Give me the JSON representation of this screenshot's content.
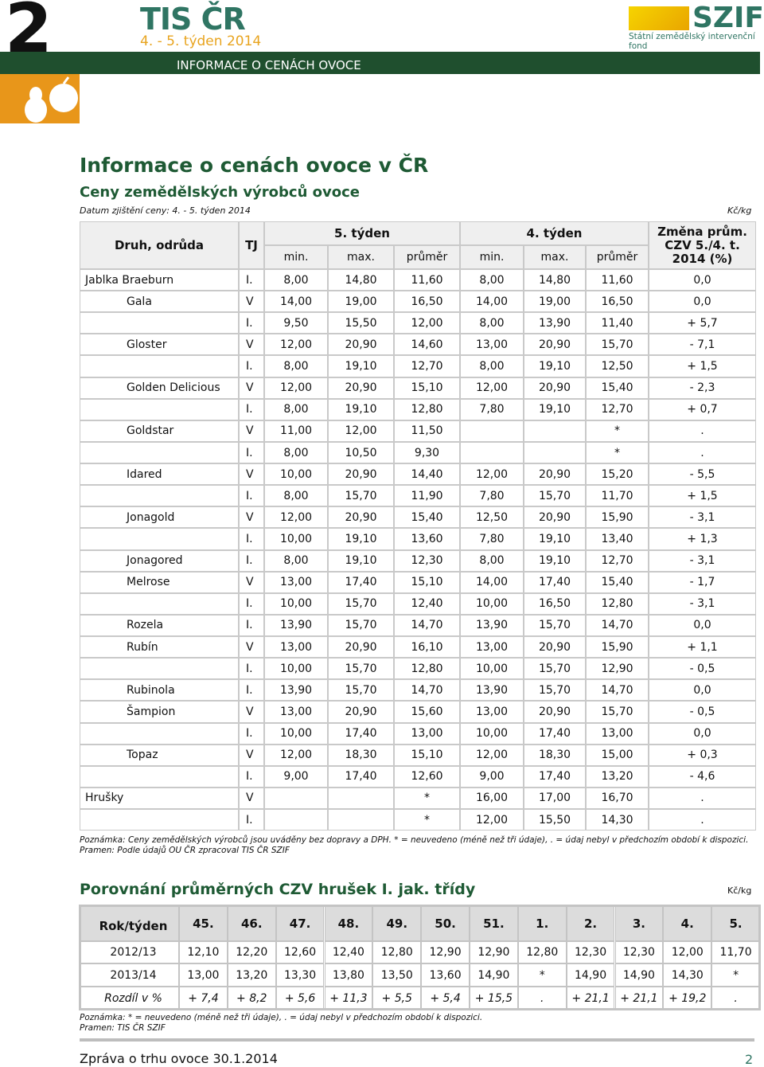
{
  "header": {
    "number": "2",
    "brand": "TIS ČR",
    "week": "4. - 5. týden 2014",
    "banner": "INFORMACE O CENÁCH OVOCE",
    "logo": "SZIF",
    "logo_sub": "Státní zemědělský intervenční fond"
  },
  "title": "Informace o cenách ovoce v ČR",
  "subtitle": "Ceny zemědělských výrobců ovoce",
  "date": "Datum zjištění ceny: 4. - 5. týden 2014",
  "unit": "Kč/kg",
  "table": {
    "columns": {
      "name": "Druh, odrůda",
      "tj": "TJ",
      "week5": "5. týden",
      "week4": "4. týden",
      "change": "Změna prům. CZV 5./4. t. 2014 (%)"
    },
    "subcolumns": [
      "min.",
      "max.",
      "průměr",
      "min.",
      "max.",
      "průměr"
    ],
    "rows": [
      [
        "Jablka Braeburn",
        "I.",
        "8,00",
        "14,80",
        "11,60",
        "8,00",
        "14,80",
        "11,60",
        "0,0"
      ],
      [
        "Gala",
        "V",
        "14,00",
        "19,00",
        "16,50",
        "14,00",
        "19,00",
        "16,50",
        "0,0"
      ],
      [
        null,
        "I.",
        "9,50",
        "15,50",
        "12,00",
        "8,00",
        "13,90",
        "11,40",
        "+ 5,7"
      ],
      [
        "Gloster",
        "V",
        "12,00",
        "20,90",
        "14,60",
        "13,00",
        "20,90",
        "15,70",
        "- 7,1"
      ],
      [
        null,
        "I.",
        "8,00",
        "19,10",
        "12,70",
        "8,00",
        "19,10",
        "12,50",
        "+ 1,5"
      ],
      [
        "Golden Delicious",
        "V",
        "12,00",
        "20,90",
        "15,10",
        "12,00",
        "20,90",
        "15,40",
        "- 2,3"
      ],
      [
        null,
        "I.",
        "8,00",
        "19,10",
        "12,80",
        "7,80",
        "19,10",
        "12,70",
        "+ 0,7"
      ],
      [
        "Goldstar",
        "V",
        "11,00",
        "12,00",
        "11,50",
        null,
        null,
        "*",
        "."
      ],
      [
        null,
        "I.",
        "8,00",
        "10,50",
        "9,30",
        null,
        null,
        "*",
        "."
      ],
      [
        "Idared",
        "V",
        "10,00",
        "20,90",
        "14,40",
        "12,00",
        "20,90",
        "15,20",
        "- 5,5"
      ],
      [
        null,
        "I.",
        "8,00",
        "15,70",
        "11,90",
        "7,80",
        "15,70",
        "11,70",
        "+ 1,5"
      ],
      [
        "Jonagold",
        "V",
        "12,00",
        "20,90",
        "15,40",
        "12,50",
        "20,90",
        "15,90",
        "- 3,1"
      ],
      [
        null,
        "I.",
        "10,00",
        "19,10",
        "13,60",
        "7,80",
        "19,10",
        "13,40",
        "+ 1,3"
      ],
      [
        "Jonagored",
        "I.",
        "8,00",
        "19,10",
        "12,30",
        "8,00",
        "19,10",
        "12,70",
        "- 3,1"
      ],
      [
        "Melrose",
        "V",
        "13,00",
        "17,40",
        "15,10",
        "14,00",
        "17,40",
        "15,40",
        "- 1,7"
      ],
      [
        null,
        "I.",
        "10,00",
        "15,70",
        "12,40",
        "10,00",
        "16,50",
        "12,80",
        "- 3,1"
      ],
      [
        "Rozela",
        "I.",
        "13,90",
        "15,70",
        "14,70",
        "13,90",
        "15,70",
        "14,70",
        "0,0"
      ],
      [
        "Rubín",
        "V",
        "13,00",
        "20,90",
        "16,10",
        "13,00",
        "20,90",
        "15,90",
        "+ 1,1"
      ],
      [
        null,
        "I.",
        "10,00",
        "15,70",
        "12,80",
        "10,00",
        "15,70",
        "12,90",
        "- 0,5"
      ],
      [
        "Rubinola",
        "I.",
        "13,90",
        "15,70",
        "14,70",
        "13,90",
        "15,70",
        "14,70",
        "0,0"
      ],
      [
        "Šampion",
        "V",
        "13,00",
        "20,90",
        "15,60",
        "13,00",
        "20,90",
        "15,70",
        "- 0,5"
      ],
      [
        null,
        "I.",
        "10,00",
        "17,40",
        "13,00",
        "10,00",
        "17,40",
        "13,00",
        "0,0"
      ],
      [
        "Topaz",
        "V",
        "12,00",
        "18,30",
        "15,10",
        "12,00",
        "18,30",
        "15,00",
        "+ 0,3"
      ],
      [
        null,
        "I.",
        "9,00",
        "17,40",
        "12,60",
        "9,00",
        "17,40",
        "13,20",
        "- 4,6"
      ],
      [
        "Hrušky",
        "V",
        null,
        null,
        "*",
        "16,00",
        "17,00",
        "16,70",
        "."
      ],
      [
        null,
        "I.",
        null,
        null,
        "*",
        "12,00",
        "15,50",
        "14,30",
        "."
      ]
    ]
  },
  "note": "Poznámka: Ceny zemědělských výrobců jsou uváděny bez dopravy a DPH. * = neuvedeno (méně než tři údaje), . = údaj nebyl v předchozím období k dispozici.",
  "source": "Pramen: Podle údajů OU ČR zpracoval TIS ČR SZIF",
  "section2": {
    "title": "Porovnání průměrných CZV hrušek I. jak. třídy",
    "unit": "Kč/kg",
    "table": {
      "header": [
        "Rok/týden",
        "45.",
        "46.",
        "47.",
        "48.",
        "49.",
        "50.",
        "51.",
        "1.",
        "2.",
        "3.",
        "4.",
        "5."
      ],
      "rows": [
        [
          "2012/13",
          "12,10",
          "12,20",
          "12,60",
          "12,40",
          "12,80",
          "12,90",
          "12,90",
          "12,80",
          "12,30",
          "12,30",
          "12,00",
          "11,70"
        ],
        [
          "2013/14",
          "13,00",
          "13,20",
          "13,30",
          "13,80",
          "13,50",
          "13,60",
          "14,90",
          "*",
          "14,90",
          "14,90",
          "14,30",
          "*"
        ],
        [
          "Rozdíl v %",
          "+ 7,4",
          "+ 8,2",
          "+ 5,6",
          "+ 11,3",
          "+ 5,5",
          "+ 5,4",
          "+ 15,5",
          ".",
          "+ 21,1",
          "+ 21,1",
          "+ 19,2",
          "."
        ]
      ]
    },
    "note": "Poznámka: * = neuvedeno (méně než tři údaje), . = údaj nebyl v předchozím období k dispozici.",
    "source": "Pramen: TIS ČR SZIF"
  },
  "footer": {
    "text": "Zpráva o trhu ovoce 30.1.2014",
    "page": "2"
  }
}
